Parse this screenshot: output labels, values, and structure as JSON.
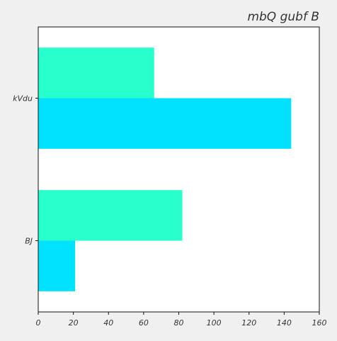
{
  "chart_data": {
    "type": "bar",
    "orientation": "horizontal",
    "title": "mbQ gubf B",
    "categories": [
      "kVdu",
      "BJ"
    ],
    "series": [
      {
        "color": "#27ffcd",
        "values": [
          66,
          82
        ]
      },
      {
        "color": "#00e2ff",
        "values": [
          144,
          21
        ]
      }
    ],
    "xlim": [
      0,
      160
    ],
    "xticks": [
      0,
      20,
      40,
      60,
      80,
      100,
      120,
      140,
      160
    ],
    "grid": false,
    "legend": "none"
  }
}
